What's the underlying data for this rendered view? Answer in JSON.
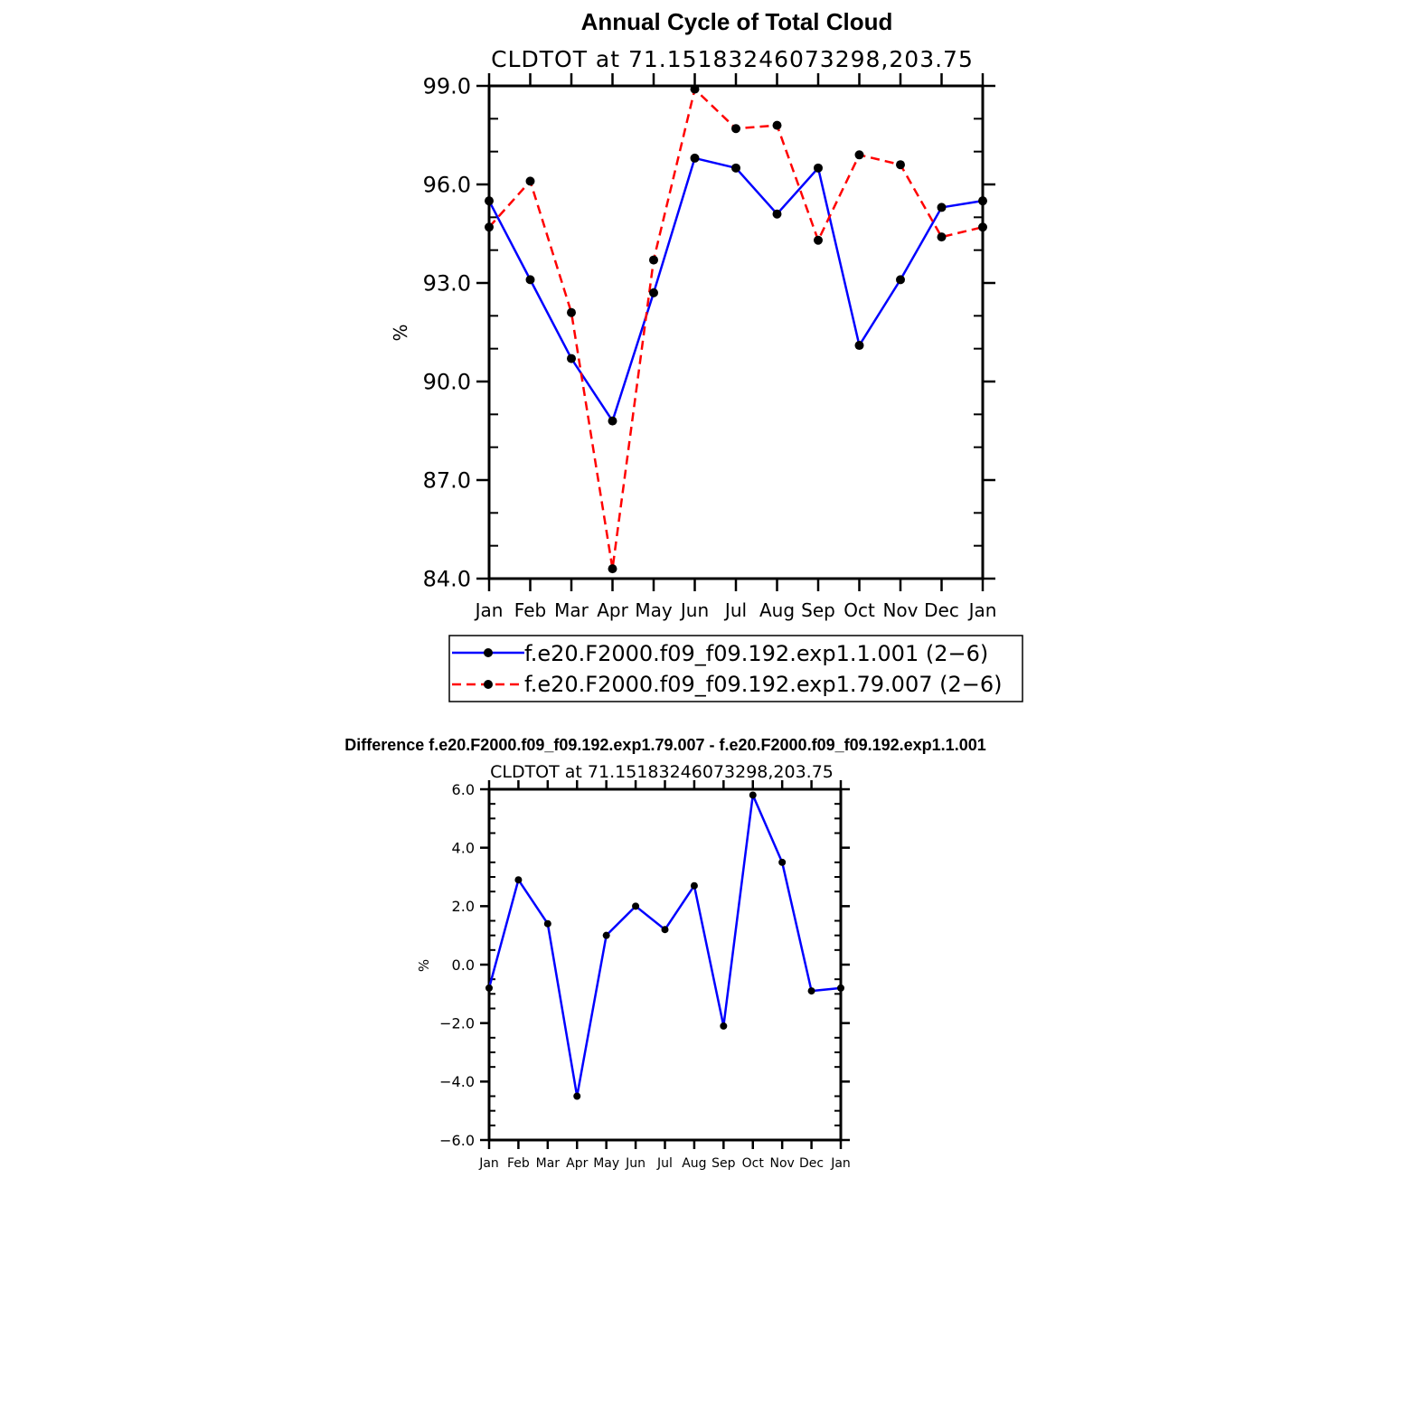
{
  "chart_data": [
    {
      "type": "line",
      "title": "Annual Cycle of Total Cloud",
      "subtitle": "CLDTOT  at  71.15183246073298,203.75",
      "xlabel": "",
      "ylabel": "%",
      "categories": [
        "Jan",
        "Feb",
        "Mar",
        "Apr",
        "May",
        "Jun",
        "Jul",
        "Aug",
        "Sep",
        "Oct",
        "Nov",
        "Dec",
        "Jan"
      ],
      "ylim": [
        84.0,
        99.0
      ],
      "yticks": [
        "99.0",
        "96.0",
        "93.0",
        "90.0",
        "87.0",
        "84.0"
      ],
      "ytick_values": [
        99,
        96,
        93,
        90,
        87,
        84
      ],
      "grid": false,
      "legend_position": "bottom-center",
      "series": [
        {
          "name": "f.e20.F2000.f09_f09.192.exp1.1.001 (2−6)",
          "color": "#0000ff",
          "dashed": false,
          "values": [
            95.5,
            93.1,
            90.7,
            88.8,
            92.7,
            96.8,
            96.5,
            95.1,
            96.5,
            91.1,
            93.1,
            95.3,
            95.5
          ]
        },
        {
          "name": "f.e20.F2000.f09_f09.192.exp1.79.007 (2−6)",
          "color": "#ff0000",
          "dashed": true,
          "values": [
            94.7,
            96.1,
            92.1,
            84.3,
            93.7,
            98.9,
            97.7,
            97.8,
            94.3,
            96.9,
            96.6,
            94.4,
            94.7
          ]
        }
      ]
    },
    {
      "type": "line",
      "title": "Difference f.e20.F2000.f09_f09.192.exp1.79.007 - f.e20.F2000.f09_f09.192.exp1.1.001",
      "subtitle": "CLDTOT  at  71.15183246073298,203.75",
      "xlabel": "",
      "ylabel": "%",
      "categories": [
        "Jan",
        "Feb",
        "Mar",
        "Apr",
        "May",
        "Jun",
        "Jul",
        "Aug",
        "Sep",
        "Oct",
        "Nov",
        "Dec",
        "Jan"
      ],
      "ylim": [
        -6.0,
        6.0
      ],
      "yticks": [
        "6.0",
        "4.0",
        "2.0",
        "0.0",
        "−2.0",
        "−4.0",
        "−6.0"
      ],
      "ytick_values": [
        6,
        4,
        2,
        0,
        -2,
        -4,
        -6
      ],
      "grid": false,
      "series": [
        {
          "color": "#0000ff",
          "dashed": false,
          "values": [
            -0.8,
            2.9,
            1.4,
            -4.5,
            1.0,
            2.0,
            1.2,
            2.7,
            -2.1,
            5.8,
            3.5,
            -0.9,
            -0.8
          ]
        }
      ]
    }
  ]
}
